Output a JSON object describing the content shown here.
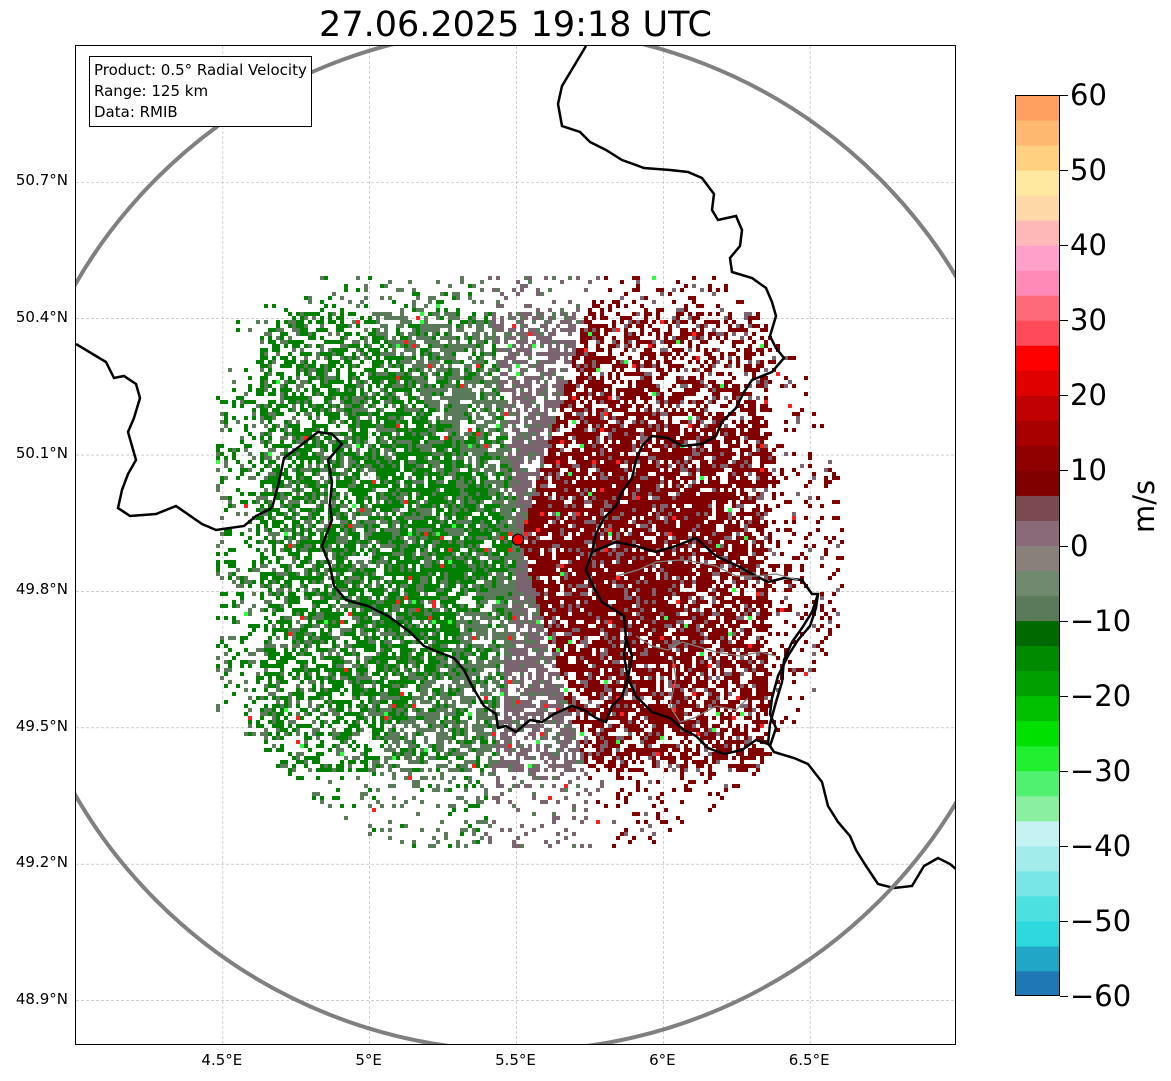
{
  "title": "27.06.2025 19:18 UTC",
  "info": {
    "product": "Product: 0.5° Radial Velocity",
    "range": "Range: 125 km",
    "source": "Data: RMIB"
  },
  "map": {
    "lon_range": [
      4.0,
      7.0
    ],
    "lat_range": [
      48.8,
      51.0
    ],
    "radar_site": {
      "lon": 5.505,
      "lat": 49.914
    },
    "range_circle_km": 125,
    "lat_ticks": [
      "50.7°N",
      "50.4°N",
      "50.1°N",
      "49.8°N",
      "49.5°N",
      "49.2°N",
      "48.9°N"
    ],
    "lat_values": [
      50.7,
      50.4,
      50.1,
      49.8,
      49.5,
      49.2,
      48.9
    ],
    "lon_ticks": [
      "4.5°E",
      "5°E",
      "5.5°E",
      "6°E",
      "6.5°E"
    ],
    "lon_values": [
      4.5,
      5.0,
      5.5,
      6.0,
      6.5
    ],
    "grid": true,
    "colors": {
      "border": "#000000",
      "range_ring": "#808080",
      "site": "#ff0000",
      "inbound_strong": "#008000",
      "inbound_weak": "#5a7a5a",
      "zero": "#7a6470",
      "outbound": "#800000"
    }
  },
  "colorbar": {
    "unit": "m/s",
    "min": -60,
    "max": 60,
    "ticks": [
      "60",
      "50",
      "40",
      "30",
      "20",
      "10",
      "0",
      "−10",
      "−20",
      "−30",
      "−40",
      "−50",
      "−60"
    ],
    "tick_values": [
      60,
      50,
      40,
      30,
      20,
      10,
      0,
      -10,
      -20,
      -30,
      -40,
      -50,
      -60
    ],
    "colors": [
      "#1f78b4",
      "#21a6c8",
      "#2dd9dd",
      "#4de0e0",
      "#78e6e6",
      "#a3ecec",
      "#c5f2f2",
      "#8af0a0",
      "#50f070",
      "#20f030",
      "#00e000",
      "#00c000",
      "#00a000",
      "#008a00",
      "#006a00",
      "#5a7a5a",
      "#6f8a6f",
      "#88807a",
      "#8a6a78",
      "#7a4a50",
      "#800000",
      "#900000",
      "#a80000",
      "#c00000",
      "#e00000",
      "#ff0000",
      "#ff4a5a",
      "#ff6a7a",
      "#ff8ab8",
      "#ffa0c8",
      "#ffb8b8",
      "#ffd8a8",
      "#ffe8a0",
      "#ffd080",
      "#ffb870",
      "#ffa060"
    ]
  }
}
